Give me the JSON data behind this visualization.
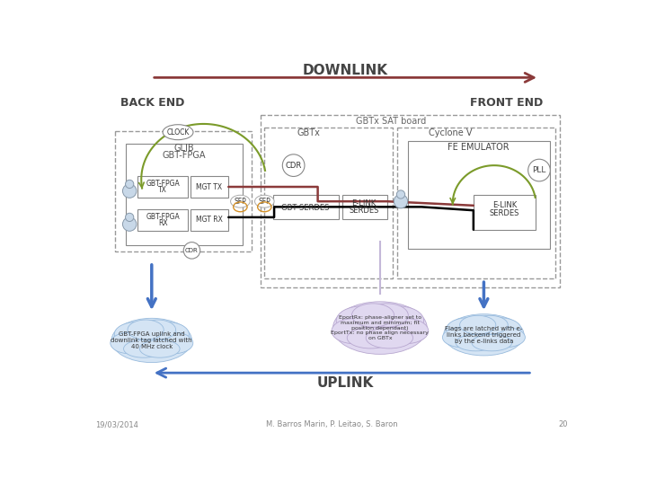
{
  "title_downlink": "DOWNLINK",
  "title_uplink": "UPLINK",
  "back_end_label": "BACK END",
  "front_end_label": "FRONT END",
  "clock_label": "CLOCK",
  "gbtx_sat_label": "GBTx SAT board",
  "glib_label": "GLIB",
  "gbt_fpga_label": "GBT-FPGA",
  "gbtx_label": "GBTx",
  "cyclone_label": "Cyclone V",
  "fe_emulator_label": "FE EMULATOR",
  "pll_label": "PLL",
  "cdr_label1": "CDR",
  "cdr_label2": "CDR",
  "sfp_label1": "SFP",
  "sfp_label2": "SFP",
  "gbt_serdes_label": "GBT SERDES",
  "elink_serdes_label": "E-LINK\nSERDES",
  "cloud1_text": "GBT-FPGA uplink and\ndownlink tag latched with\n40 MHz clock",
  "cloud2_text": "EportRx: phase-aligner set to\nmaximum and minimum; fit\nposition dependant)\nEportTx: no phase align necessary\non GBTx",
  "cloud3_text": "Flags are latched with e-\nlinks backend triggered\nby the e-links data",
  "footer_date": "19/03/2014",
  "footer_authors": "M. Barros Marin, P. Leitao, S. Baron",
  "footer_page": "20",
  "bg_color": "#ffffff",
  "downlink_arrow_color": "#8B3A3A",
  "uplink_arrow_color": "#4472C4",
  "signal_line_color": "#8B3A3A",
  "black_line_color": "#000000",
  "blue_arrow_color": "#4472C4",
  "green_color": "#7B9B2A",
  "lilac_color": "#C4B8D8",
  "box_edge_color": "#888888",
  "text_color": "#333333"
}
